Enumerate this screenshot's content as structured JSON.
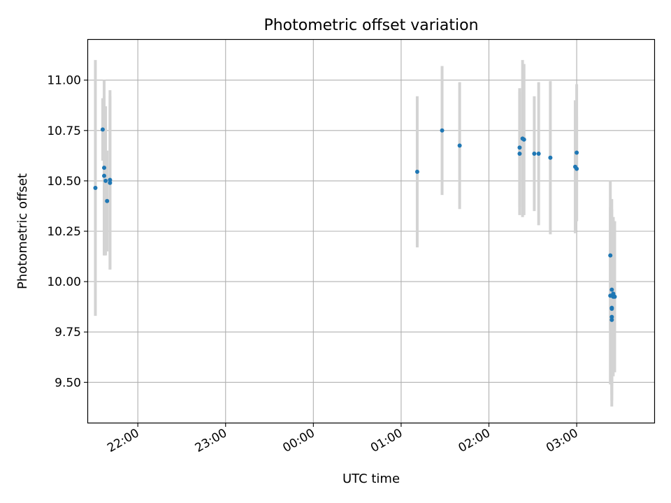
{
  "chart_data": {
    "type": "scatter",
    "title": "Photometric offset variation",
    "xlabel": "UTC time",
    "ylabel": "Photometric offset",
    "x_ticks": [
      "22:00",
      "23:00",
      "00:00",
      "01:00",
      "02:00",
      "03:00"
    ],
    "y_ticks": [
      "9.50",
      "9.75",
      "10.00",
      "10.25",
      "10.50",
      "10.75",
      "11.00"
    ],
    "xlim": [
      "21:26",
      "03:53"
    ],
    "ylim": [
      9.3,
      11.2
    ],
    "grid": true,
    "error_bar_color": "#d3d3d3",
    "point_color": "#1f77b4",
    "points": [
      {
        "time": "21:31",
        "y": 10.465,
        "yerr": 0.635
      },
      {
        "time": "21:36",
        "y": 10.755,
        "yerr": 0.155
      },
      {
        "time": "21:37",
        "y": 10.565,
        "yerr": 0.435
      },
      {
        "time": "21:37",
        "y": 10.525,
        "yerr": 0.395
      },
      {
        "time": "21:38",
        "y": 10.5,
        "yerr": 0.37
      },
      {
        "time": "21:39",
        "y": 10.4,
        "yerr": 0.25
      },
      {
        "time": "21:41",
        "y": 10.505,
        "yerr": 0.445
      },
      {
        "time": "21:41",
        "y": 10.49,
        "yerr": 0.43
      },
      {
        "time": "01:11",
        "y": 10.545,
        "yerr": 0.375
      },
      {
        "time": "01:28",
        "y": 10.75,
        "yerr": 0.32
      },
      {
        "time": "01:40",
        "y": 10.675,
        "yerr": 0.315
      },
      {
        "time": "02:21",
        "y": 10.665,
        "yerr": 0.295
      },
      {
        "time": "02:21",
        "y": 10.635,
        "yerr": 0.305
      },
      {
        "time": "02:23",
        "y": 10.71,
        "yerr": 0.39
      },
      {
        "time": "02:24",
        "y": 10.705,
        "yerr": 0.375
      },
      {
        "time": "02:31",
        "y": 10.635,
        "yerr": 0.285
      },
      {
        "time": "02:34",
        "y": 10.635,
        "yerr": 0.355
      },
      {
        "time": "02:42",
        "y": 10.615,
        "yerr": 0.38
      },
      {
        "time": "02:59",
        "y": 10.57,
        "yerr": 0.33
      },
      {
        "time": "03:00",
        "y": 10.56,
        "yerr": 0.26
      },
      {
        "time": "03:00",
        "y": 10.64,
        "yerr": 0.34
      },
      {
        "time": "03:23",
        "y": 10.13,
        "yerr": 0.37
      },
      {
        "time": "03:23",
        "y": 9.93,
        "yerr": 0.44
      },
      {
        "time": "03:24",
        "y": 9.96,
        "yerr": 0.45
      },
      {
        "time": "03:24",
        "y": 9.87,
        "yerr": 0.49
      },
      {
        "time": "03:24",
        "y": 9.865,
        "yerr": 0.38
      },
      {
        "time": "03:24",
        "y": 9.825,
        "yerr": 0.415
      },
      {
        "time": "03:24",
        "y": 9.81,
        "yerr": 0.37
      },
      {
        "time": "03:25",
        "y": 9.925,
        "yerr": 0.395
      },
      {
        "time": "03:25",
        "y": 9.935,
        "yerr": 0.37
      },
      {
        "time": "03:25",
        "y": 9.94,
        "yerr": 0.38
      },
      {
        "time": "03:26",
        "y": 9.925,
        "yerr": 0.375
      }
    ]
  }
}
